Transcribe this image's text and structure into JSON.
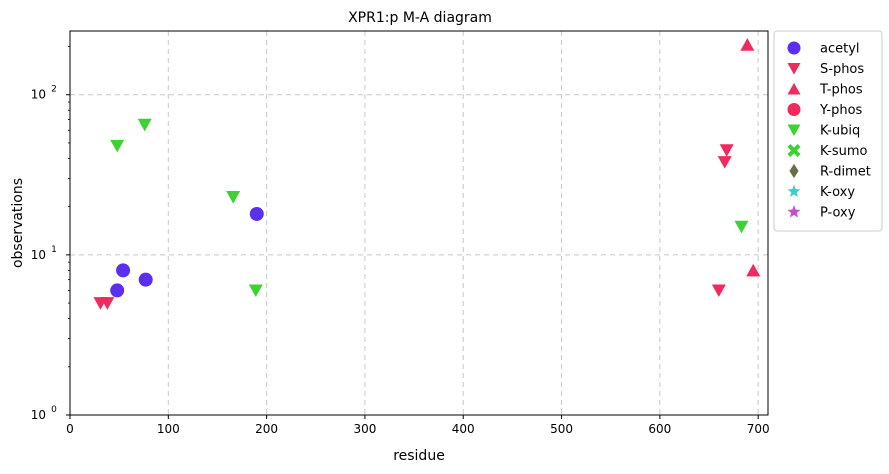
{
  "chart_data": {
    "type": "scatter",
    "title": "XPR1:p M-A diagram",
    "xlabel": "residue",
    "ylabel": "observations",
    "xlim": [
      0,
      710
    ],
    "ylim": [
      1,
      250
    ],
    "yscale": "log",
    "x_ticks": [
      "0",
      "100",
      "200",
      "300",
      "400",
      "500",
      "600",
      "700"
    ],
    "y_ticks": [
      {
        "value": 1,
        "mantissa": "10",
        "exp": "0"
      },
      {
        "value": 10,
        "mantissa": "10",
        "exp": "1"
      },
      {
        "value": 100,
        "mantissa": "10",
        "exp": "2"
      }
    ],
    "grid": true,
    "legend_position": "outside-right",
    "series": [
      {
        "name": "acetyl",
        "marker": "circle",
        "color": "#5a2ff0",
        "points": [
          {
            "x": 48,
            "y": 6
          },
          {
            "x": 54,
            "y": 8
          },
          {
            "x": 77,
            "y": 7
          },
          {
            "x": 190,
            "y": 18
          }
        ]
      },
      {
        "name": "S-phos",
        "marker": "triangle-down",
        "color": "#f02a5e",
        "points": [
          {
            "x": 31,
            "y": 5
          },
          {
            "x": 38,
            "y": 5
          },
          {
            "x": 660,
            "y": 6
          },
          {
            "x": 666,
            "y": 38
          },
          {
            "x": 668,
            "y": 45
          }
        ]
      },
      {
        "name": "T-phos",
        "marker": "triangle-up",
        "color": "#f02a5e",
        "points": [
          {
            "x": 689,
            "y": 205
          },
          {
            "x": 695,
            "y": 8
          }
        ]
      },
      {
        "name": "Y-phos",
        "marker": "circle",
        "color": "#f02a5e",
        "points": []
      },
      {
        "name": "K-ubiq",
        "marker": "triangle-down",
        "color": "#3ed134",
        "points": [
          {
            "x": 48,
            "y": 48
          },
          {
            "x": 76,
            "y": 65
          },
          {
            "x": 166,
            "y": 23
          },
          {
            "x": 189,
            "y": 6
          },
          {
            "x": 683,
            "y": 15
          }
        ]
      },
      {
        "name": "K-sumo",
        "marker": "x",
        "color": "#3ed134",
        "points": []
      },
      {
        "name": "R-dimet",
        "marker": "diamond",
        "color": "#6b6b45",
        "points": []
      },
      {
        "name": "K-oxy",
        "marker": "star",
        "color": "#3ecbd6",
        "points": []
      },
      {
        "name": "P-oxy",
        "marker": "star",
        "color": "#c94bd0",
        "points": []
      }
    ]
  }
}
